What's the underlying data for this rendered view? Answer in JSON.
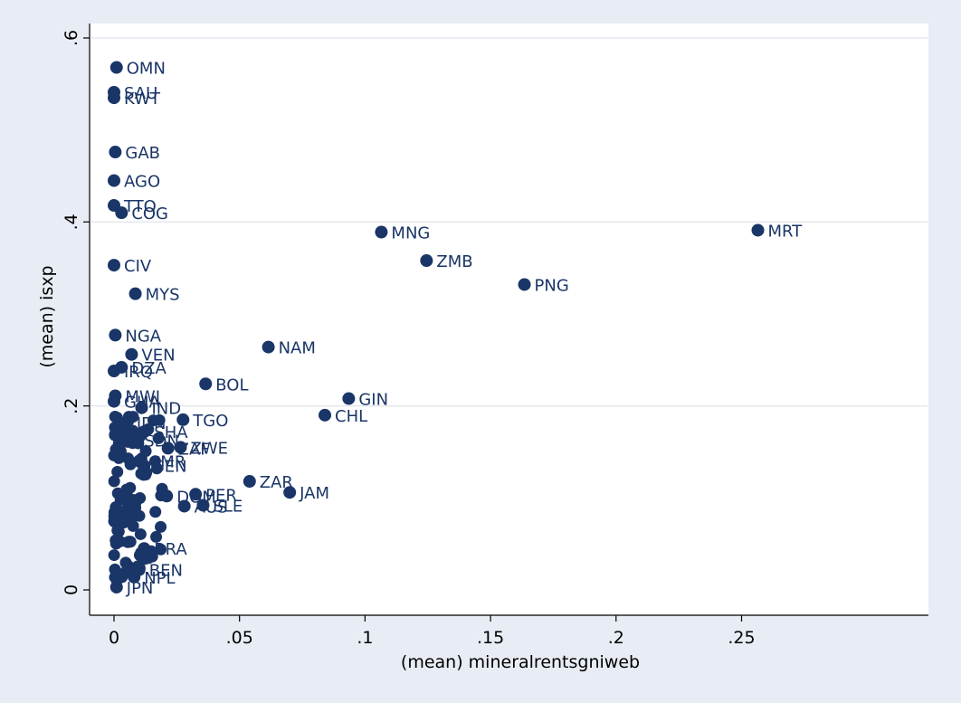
{
  "chart_data": {
    "type": "scatter",
    "title": "",
    "xlabel": "(mean) mineralrentsgniweb",
    "ylabel": "(mean) isxp",
    "xlim": [
      0,
      0.26
    ],
    "ylim": [
      0,
      0.6
    ],
    "x_ticks": [
      {
        "value": 0,
        "label": "0"
      },
      {
        "value": 0.05,
        "label": ".05"
      },
      {
        "value": 0.1,
        "label": ".1"
      },
      {
        "value": 0.15,
        "label": ".15"
      },
      {
        "value": 0.2,
        "label": ".2"
      },
      {
        "value": 0.25,
        "label": ".25"
      }
    ],
    "y_ticks": [
      {
        "value": 0,
        "label": "0"
      },
      {
        "value": 0.2,
        "label": ".2"
      },
      {
        "value": 0.4,
        "label": ".4"
      },
      {
        "value": 0.6,
        "label": ".6"
      }
    ],
    "grid": {
      "horizontal": true,
      "vertical": false
    },
    "colors": {
      "marker": "#1a3567",
      "label": "#1a3567",
      "plot_bg": "#ffffff",
      "page_bg": "#e8ecf4",
      "grid": "#e3e7ee"
    },
    "points": [
      {
        "label": "OMN",
        "x": 0.001,
        "y": 0.568
      },
      {
        "label": "SAU",
        "x": 0.0,
        "y": 0.541
      },
      {
        "label": "KWT",
        "x": 0.0,
        "y": 0.535
      },
      {
        "label": "GAB",
        "x": 0.0005,
        "y": 0.476
      },
      {
        "label": "AGO",
        "x": 0.0,
        "y": 0.445
      },
      {
        "label": "TTO",
        "x": 0.0,
        "y": 0.418
      },
      {
        "label": "COG",
        "x": 0.003,
        "y": 0.41
      },
      {
        "label": "MNG",
        "x": 0.1065,
        "y": 0.389
      },
      {
        "label": "MRT",
        "x": 0.2565,
        "y": 0.391
      },
      {
        "label": "CIV",
        "x": 0.0,
        "y": 0.353
      },
      {
        "label": "ZMB",
        "x": 0.1245,
        "y": 0.358
      },
      {
        "label": "MYS",
        "x": 0.0085,
        "y": 0.322
      },
      {
        "label": "PNG",
        "x": 0.1635,
        "y": 0.332
      },
      {
        "label": "NGA",
        "x": 0.0005,
        "y": 0.277
      },
      {
        "label": "NAM",
        "x": 0.0615,
        "y": 0.264
      },
      {
        "label": "VEN",
        "x": 0.007,
        "y": 0.256
      },
      {
        "label": "DZA",
        "x": 0.003,
        "y": 0.242
      },
      {
        "label": "IRQ",
        "x": 0.0,
        "y": 0.238
      },
      {
        "label": "BOL",
        "x": 0.0365,
        "y": 0.224
      },
      {
        "label": "GIN",
        "x": 0.0935,
        "y": 0.208
      },
      {
        "label": "MWI",
        "x": 0.0005,
        "y": 0.211
      },
      {
        "label": "GHA",
        "x": 0.0,
        "y": 0.205
      },
      {
        "label": "IND",
        "x": 0.011,
        "y": 0.198
      },
      {
        "label": "CHL",
        "x": 0.084,
        "y": 0.19
      },
      {
        "label": "TGO",
        "x": 0.0275,
        "y": 0.185
      },
      {
        "label": "IDN",
        "x": 0.005,
        "y": 0.182
      },
      {
        "label": "SHA",
        "x": 0.012,
        "y": 0.172
      },
      {
        "label": "SDN",
        "x": 0.008,
        "y": 0.163
      },
      {
        "label": "ZWE",
        "x": 0.0265,
        "y": 0.155
      },
      {
        "label": "ZAF",
        "x": 0.0215,
        "y": 0.154
      },
      {
        "label": "SEN",
        "x": 0.012,
        "y": 0.135
      },
      {
        "label": "CMR",
        "x": 0.01,
        "y": 0.14
      },
      {
        "label": "ZAR",
        "x": 0.054,
        "y": 0.118
      },
      {
        "label": "JAM",
        "x": 0.07,
        "y": 0.106
      },
      {
        "label": "PER",
        "x": 0.0325,
        "y": 0.104
      },
      {
        "label": "DOM",
        "x": 0.021,
        "y": 0.102
      },
      {
        "label": "SLE",
        "x": 0.0355,
        "y": 0.092
      },
      {
        "label": "AUS",
        "x": 0.028,
        "y": 0.091
      },
      {
        "label": "BRA",
        "x": 0.012,
        "y": 0.045
      },
      {
        "label": "BEN",
        "x": 0.01,
        "y": 0.022
      },
      {
        "label": "NPL",
        "x": 0.008,
        "y": 0.014
      },
      {
        "label": "JPN",
        "x": 0.001,
        "y": 0.003
      }
    ]
  }
}
